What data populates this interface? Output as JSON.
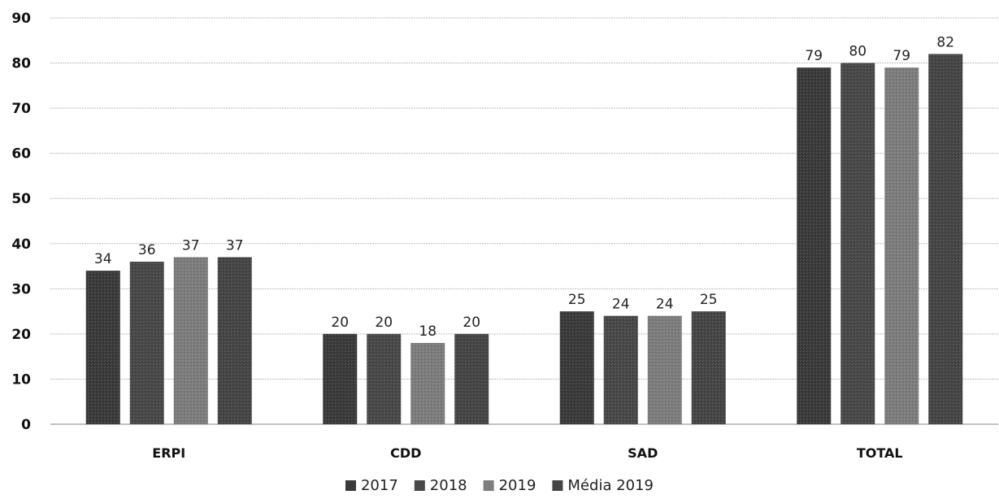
{
  "chart_data": {
    "type": "bar",
    "title": "",
    "xlabel": "",
    "ylabel": "",
    "ylim": [
      0,
      90
    ],
    "yticks": [
      0,
      10,
      20,
      30,
      40,
      50,
      60,
      70,
      80,
      90
    ],
    "grid": true,
    "legend_position": "bottom-center",
    "categories": [
      "ERPI",
      "CDD",
      "SAD",
      "TOTAL"
    ],
    "series": [
      {
        "name": "2017",
        "values": [
          34,
          20,
          25,
          79
        ],
        "color": "#3a3a3a"
      },
      {
        "name": "2018",
        "values": [
          36,
          20,
          24,
          80
        ],
        "color": "#484848"
      },
      {
        "name": "2019",
        "values": [
          37,
          18,
          24,
          79
        ],
        "color": "#7d7d7d"
      },
      {
        "name": "Média 2019",
        "values": [
          37,
          20,
          25,
          82
        ],
        "color": "#454545"
      }
    ]
  }
}
